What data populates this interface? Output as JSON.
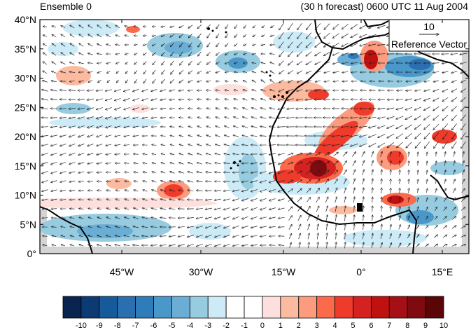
{
  "header": {
    "left_title": "Ensemble 0",
    "right_title": "(30 h forecast) 0600 UTC 11 Aug 2004"
  },
  "axes": {
    "y_ticks": [
      "0°",
      "5°N",
      "10°N",
      "15°N",
      "20°N",
      "25°N",
      "30°N",
      "35°N",
      "40°N"
    ],
    "x_ticks": [
      "45°W",
      "30°W",
      "15°W",
      "0°",
      "15°E"
    ]
  },
  "reference_vector": {
    "magnitude": "10",
    "label": "Reference Vector"
  },
  "colorbar": {
    "labels": [
      "-10",
      "-9",
      "-8",
      "-7",
      "-6",
      "-5",
      "-4",
      "-3",
      "-2",
      "-1",
      "0",
      "1",
      "2",
      "3",
      "4",
      "5",
      "6",
      "7",
      "8",
      "9",
      "10"
    ],
    "colors": [
      "#08244f",
      "#0c3a72",
      "#175a9c",
      "#2a70b0",
      "#2f7cbb",
      "#4a97c9",
      "#6aaed6",
      "#96cbe0",
      "#ccebf7",
      "#ffffff",
      "#ffffff",
      "#fde0dd",
      "#fcbba1",
      "#fc9b7e",
      "#fb6a4a",
      "#ef3b2c",
      "#d52221",
      "#c01111",
      "#a50f15",
      "#7f0b10",
      "#5a0507"
    ]
  }
}
